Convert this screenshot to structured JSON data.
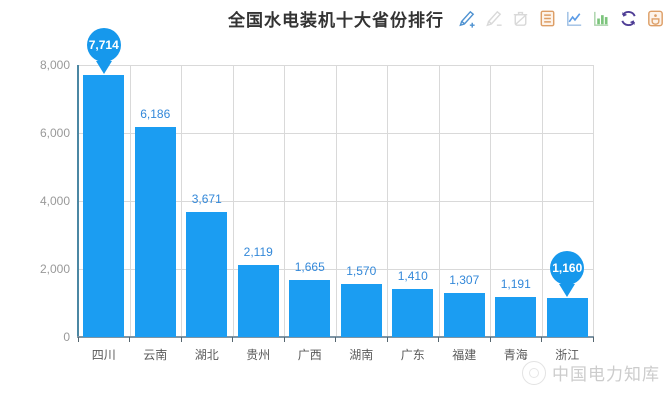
{
  "header": {
    "title": "全国水电装机十大省份排行"
  },
  "toolbar": {
    "icons": [
      {
        "name": "edit-add-icon",
        "color": "#4f92d1"
      },
      {
        "name": "edit-minus-icon",
        "color": "#d9d9d9"
      },
      {
        "name": "delete-icon",
        "color": "#d9d9d9"
      },
      {
        "name": "report-icon",
        "color": "#dd9e66"
      },
      {
        "name": "line-chart-icon",
        "color": "#5c9ce6"
      },
      {
        "name": "bar-chart-icon",
        "color": "#7cc47c"
      },
      {
        "name": "refresh-icon",
        "color": "#4f3e96"
      },
      {
        "name": "save-icon",
        "color": "#dd9e66"
      }
    ]
  },
  "chart_data": {
    "type": "bar",
    "title": "全国水电装机十大省份排行",
    "categories": [
      "四川",
      "云南",
      "湖北",
      "贵州",
      "广西",
      "湖南",
      "广东",
      "福建",
      "青海",
      "浙江"
    ],
    "values": [
      7714,
      6186,
      3671,
      2119,
      1665,
      1570,
      1410,
      1307,
      1191,
      1160
    ],
    "value_labels": [
      "7,714",
      "6,186",
      "3,671",
      "2,119",
      "1,665",
      "1,570",
      "1,410",
      "1,307",
      "1,191",
      "1,160"
    ],
    "xlabel": "",
    "ylabel": "",
    "ylim": [
      0,
      8000
    ],
    "yticks": [
      0,
      2000,
      4000,
      6000,
      8000
    ],
    "ytick_labels": [
      "0",
      "2,000",
      "4,000",
      "6,000",
      "8,000"
    ],
    "grid": true,
    "legend_position": "none",
    "bar_color": "#1b9df2",
    "pin_color": "#1698ec",
    "value_label_color": "#3388d9",
    "pinned_indices": [
      0,
      9
    ]
  },
  "watermark": {
    "text": "中国电力知库"
  }
}
